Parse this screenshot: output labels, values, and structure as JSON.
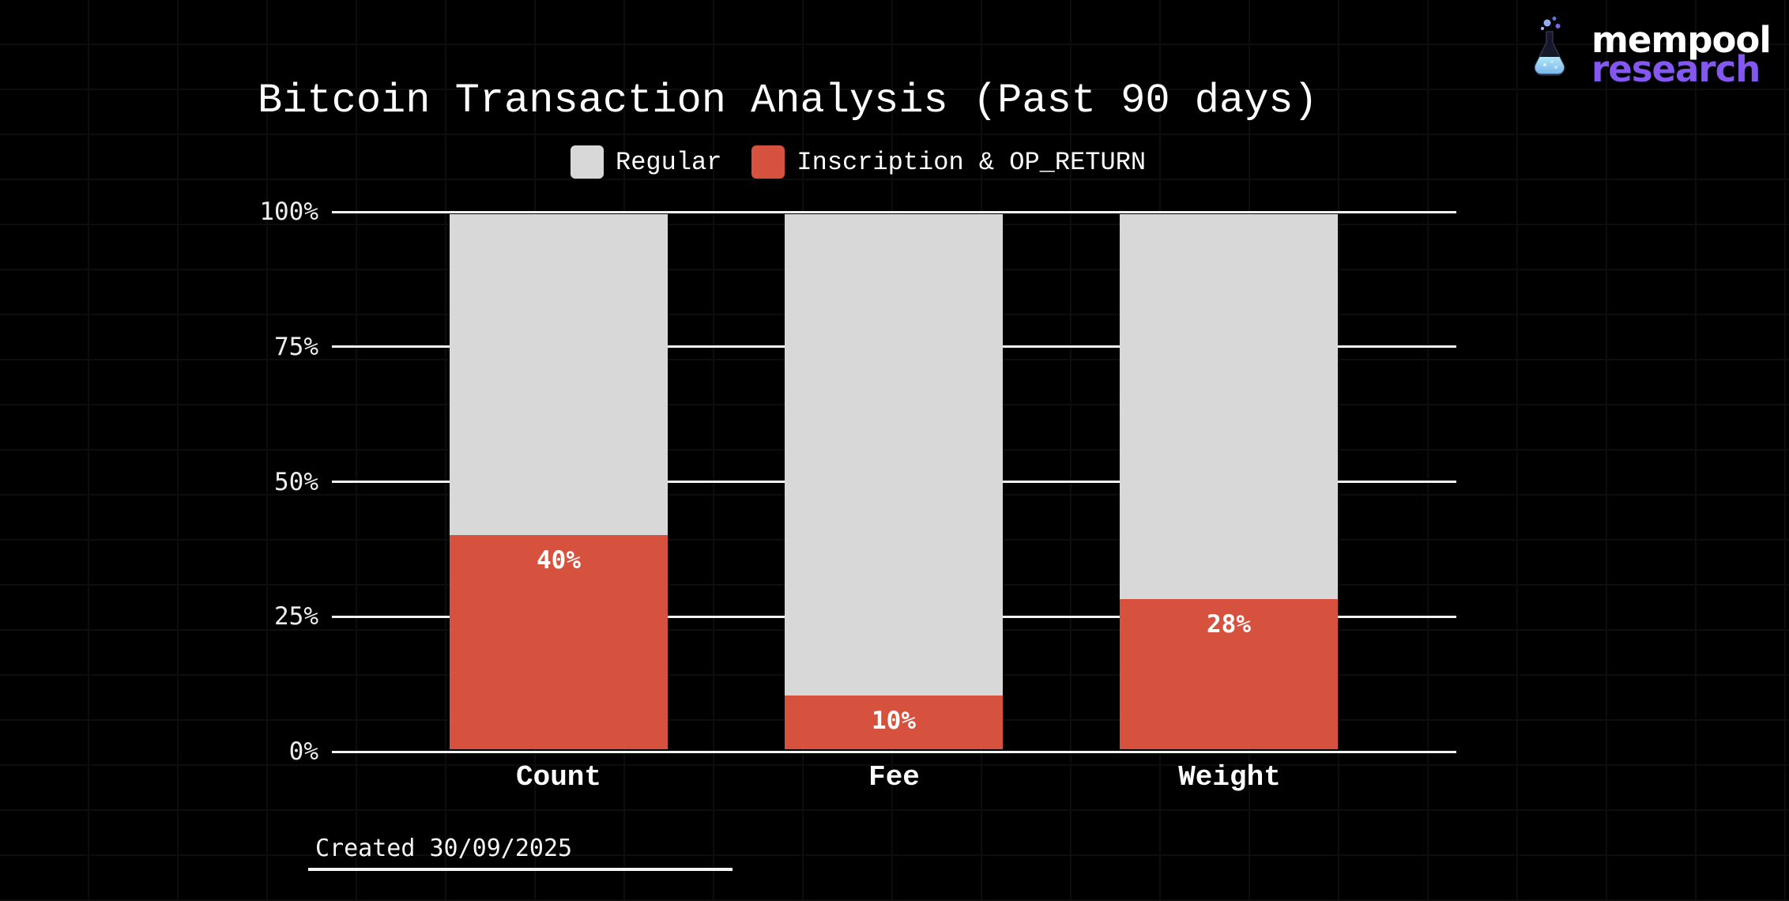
{
  "brand": {
    "line1": "mempool",
    "line2": "research",
    "accent_purple": "#8357f0"
  },
  "chart_data": {
    "type": "bar",
    "stacked": true,
    "title": "Bitcoin Transaction Analysis (Past 90 days)",
    "categories": [
      "Count",
      "Fee",
      "Weight"
    ],
    "series": [
      {
        "name": "Regular",
        "color": "#d8d8d8",
        "values": [
          60,
          90,
          72
        ]
      },
      {
        "name": "Inscription & OP_RETURN",
        "color": "#d6523f",
        "values": [
          40,
          10,
          28
        ]
      }
    ],
    "value_labels": [
      "40%",
      "10%",
      "28%"
    ],
    "value_label_color": "#ffffff",
    "yticks": [
      "100%",
      "75%",
      "50%",
      "25%",
      "0%"
    ],
    "ylim": [
      0,
      100
    ],
    "grid": true,
    "gridline_color": "#f2f2f2",
    "legend_position": "top",
    "background": "#000000"
  },
  "footer": {
    "created": "Created 30/09/2025"
  }
}
